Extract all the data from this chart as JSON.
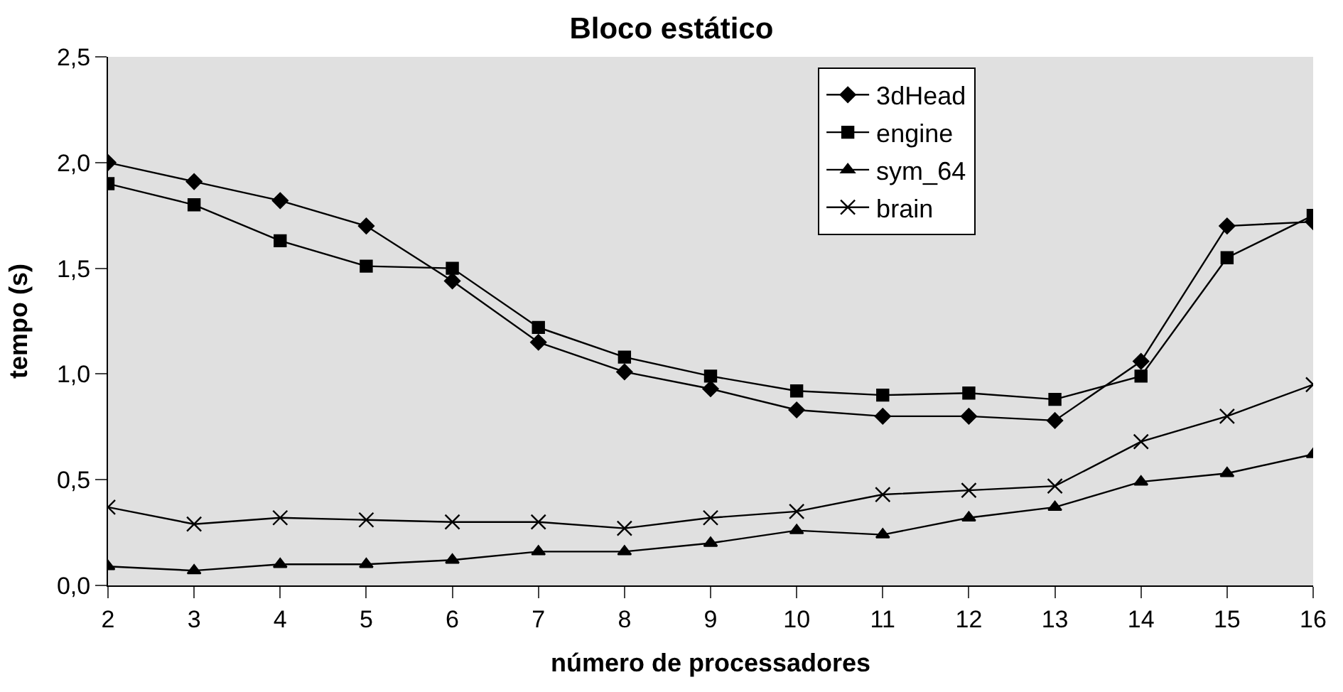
{
  "chart_data": {
    "type": "line",
    "title": "Bloco estático",
    "xlabel": "número de processadores",
    "ylabel": "tempo (s)",
    "x": [
      2,
      3,
      4,
      5,
      6,
      7,
      8,
      9,
      10,
      11,
      12,
      13,
      14,
      15,
      16
    ],
    "xlim": [
      2,
      16
    ],
    "xticks": [
      2,
      3,
      4,
      5,
      6,
      7,
      8,
      9,
      10,
      11,
      12,
      13,
      14,
      15,
      16
    ],
    "ylim": [
      0,
      2.5
    ],
    "yticks": [
      {
        "value": 0,
        "label": "0,0"
      },
      {
        "value": 0.5,
        "label": "0,5"
      },
      {
        "value": 1,
        "label": "1,0"
      },
      {
        "value": 1.5,
        "label": "1,5"
      },
      {
        "value": 2,
        "label": "2,0"
      },
      {
        "value": 2.5,
        "label": "2,5"
      }
    ],
    "grid": false,
    "legend": "top right",
    "line_style": "solid",
    "series": [
      {
        "name": "3dHead",
        "color": "#000000",
        "marker": "diamond",
        "values": [
          2.0,
          1.91,
          1.82,
          1.7,
          1.44,
          1.15,
          1.01,
          0.93,
          0.83,
          0.8,
          0.8,
          0.78,
          1.06,
          1.7,
          1.72
        ]
      },
      {
        "name": "engine",
        "color": "#000000",
        "marker": "square",
        "values": [
          1.9,
          1.8,
          1.63,
          1.51,
          1.5,
          1.22,
          1.08,
          0.99,
          0.92,
          0.9,
          0.91,
          0.88,
          0.99,
          1.55,
          1.75
        ]
      },
      {
        "name": "sym_64",
        "color": "#000000",
        "marker": "triangle",
        "values": [
          0.09,
          0.07,
          0.1,
          0.1,
          0.12,
          0.16,
          0.16,
          0.2,
          0.26,
          0.24,
          0.32,
          0.37,
          0.49,
          0.53,
          0.62
        ]
      },
      {
        "name": "brain",
        "color": "#000000",
        "marker": "cross",
        "values": [
          0.37,
          0.29,
          0.32,
          0.31,
          0.3,
          0.3,
          0.27,
          0.32,
          0.35,
          0.43,
          0.45,
          0.47,
          0.68,
          0.8,
          0.95
        ]
      }
    ]
  }
}
